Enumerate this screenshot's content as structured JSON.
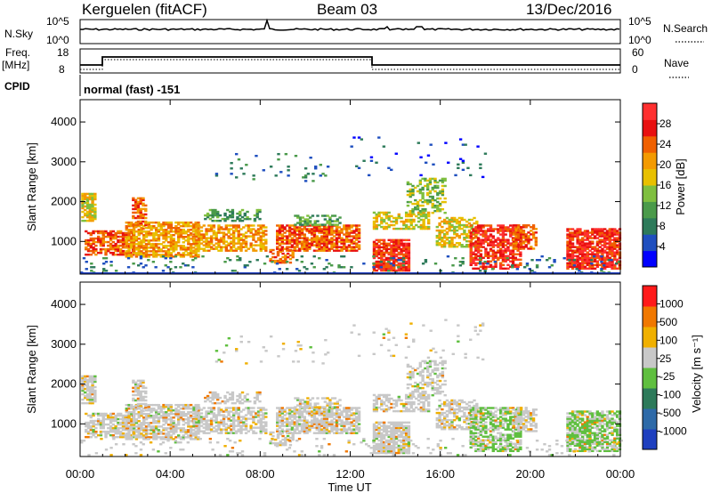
{
  "header": {
    "station": "Kerguelen (fitACF)",
    "beam": "Beam 03",
    "date": "13/Dec/2016"
  },
  "panels": {
    "nsky_label": "N.Sky",
    "nsearch_label": "N.Search",
    "freq_label_line1": "Freq.",
    "freq_label_line2": "[MHz]",
    "nave_label": "Nave",
    "cpid_label": "CPID",
    "cpid_text": "normal (fast) -151",
    "nsky_ticks": [
      "10^5",
      "10^0"
    ],
    "nsearch_ticks": [
      "10^5",
      "10^0"
    ],
    "freq_ticks": [
      "18",
      "8"
    ],
    "nave_ticks": [
      "60",
      "0"
    ]
  },
  "chart_data": [
    {
      "type": "heatmap",
      "name": "power",
      "ylabel": "Slant Range [km]",
      "yticks": [
        "1000",
        "2000",
        "3000",
        "4000"
      ],
      "ylim": [
        180,
        4560
      ],
      "xlim": [
        "00:00",
        "24:00"
      ],
      "colorbar_label": "Power [dB]",
      "colorbar_ticks": [
        "4",
        "8",
        "12",
        "16",
        "20",
        "24",
        "28"
      ],
      "colors": [
        "#0000ff",
        "#1f4fbf",
        "#2d7a5a",
        "#4a9a4a",
        "#7fbf3f",
        "#e8c000",
        "#f39a00",
        "#f06000",
        "#e81010",
        "#ff3030"
      ]
    },
    {
      "type": "heatmap",
      "name": "velocity",
      "ylabel": "Slant Range [km]",
      "yticks": [
        "1000",
        "2000",
        "3000",
        "4000"
      ],
      "ylim": [
        180,
        4560
      ],
      "xlim": [
        "00:00",
        "24:00"
      ],
      "colorbar_label": "Velocity [m s⁻¹]",
      "colorbar_ticks": [
        "1000",
        "500",
        "100",
        "25",
        "-25",
        "-100",
        "-500",
        "-1000"
      ],
      "colors": [
        "#1e3fbf",
        "#2e6aa8",
        "#2d7a5a",
        "#5fbf3f",
        "#c8c8c8",
        "#f0b000",
        "#f07800",
        "#ff1a1a"
      ]
    }
  ],
  "xaxis": {
    "ticks": [
      "00:00",
      "04:00",
      "08:00",
      "12:00",
      "16:00",
      "20:00",
      "00:00"
    ],
    "label": "Time UT"
  }
}
